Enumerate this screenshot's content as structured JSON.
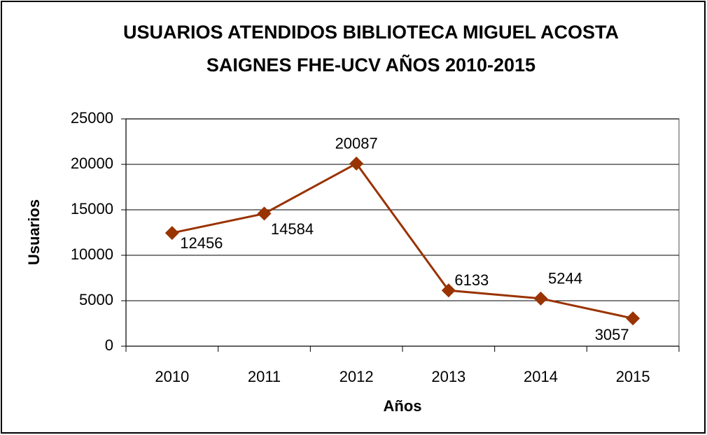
{
  "chart_data": {
    "type": "line",
    "title": [
      "USUARIOS ATENDIDOS BIBLIOTECA MIGUEL ACOSTA",
      "SAIGNES FHE-UCV AÑOS 2010-2015"
    ],
    "x_label": "Años",
    "y_label": "Usuarios",
    "categories": [
      "2010",
      "2011",
      "2012",
      "2013",
      "2014",
      "2015"
    ],
    "series": [
      {
        "name": "Usuarios",
        "color": "#993300",
        "values": [
          12456,
          14584,
          20087,
          6133,
          5244,
          3057
        ]
      }
    ],
    "ylim": [
      0,
      25000
    ],
    "yticks": [
      0,
      5000,
      10000,
      15000,
      20000,
      25000
    ],
    "grid": true
  }
}
